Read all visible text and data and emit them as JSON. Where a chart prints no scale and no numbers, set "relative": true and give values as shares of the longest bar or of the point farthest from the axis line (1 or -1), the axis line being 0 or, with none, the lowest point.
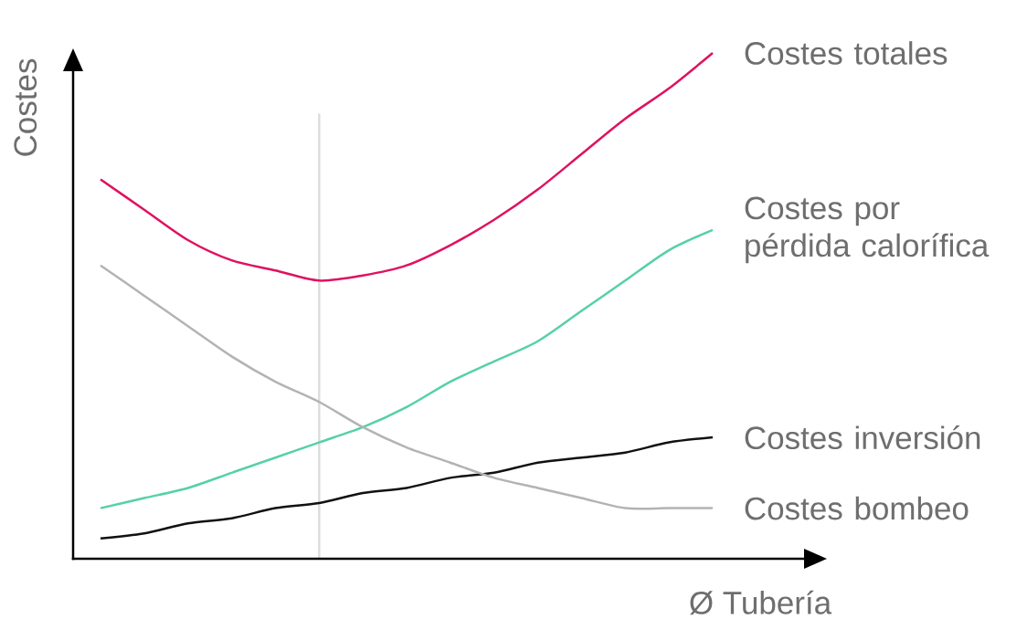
{
  "chart_data": {
    "type": "line",
    "relative": true,
    "xlabel": "Ø Tubería",
    "ylabel": "Costes",
    "marker": "none",
    "legend": false,
    "categories": [
      null,
      null,
      null,
      null,
      null,
      null,
      null,
      null,
      null,
      null,
      null,
      null,
      null,
      null,
      null
    ],
    "series": [
      {
        "name": "Costes totales",
        "color": "#e0115f",
        "values": [
          0.75,
          0.69,
          0.63,
          0.59,
          0.57,
          0.55,
          0.56,
          0.58,
          0.62,
          0.67,
          0.73,
          0.8,
          0.87,
          0.93,
          1.0
        ]
      },
      {
        "name": "Costes por pérdida calorífica",
        "color": "#55d0aa",
        "values": [
          0.1,
          0.12,
          0.14,
          0.17,
          0.2,
          0.23,
          0.26,
          0.3,
          0.35,
          0.39,
          0.43,
          0.49,
          0.55,
          0.61,
          0.65
        ]
      },
      {
        "name": "Costes inversión",
        "color": "#111111",
        "values": [
          0.04,
          0.05,
          0.07,
          0.08,
          0.1,
          0.11,
          0.13,
          0.14,
          0.16,
          0.17,
          0.19,
          0.2,
          0.21,
          0.23,
          0.24
        ]
      },
      {
        "name": "Costes bombeo",
        "color": "#b3b3b3",
        "values": [
          0.58,
          0.52,
          0.46,
          0.4,
          0.35,
          0.31,
          0.26,
          0.22,
          0.19,
          0.16,
          0.14,
          0.12,
          0.1,
          0.1,
          0.1
        ]
      }
    ]
  }
}
